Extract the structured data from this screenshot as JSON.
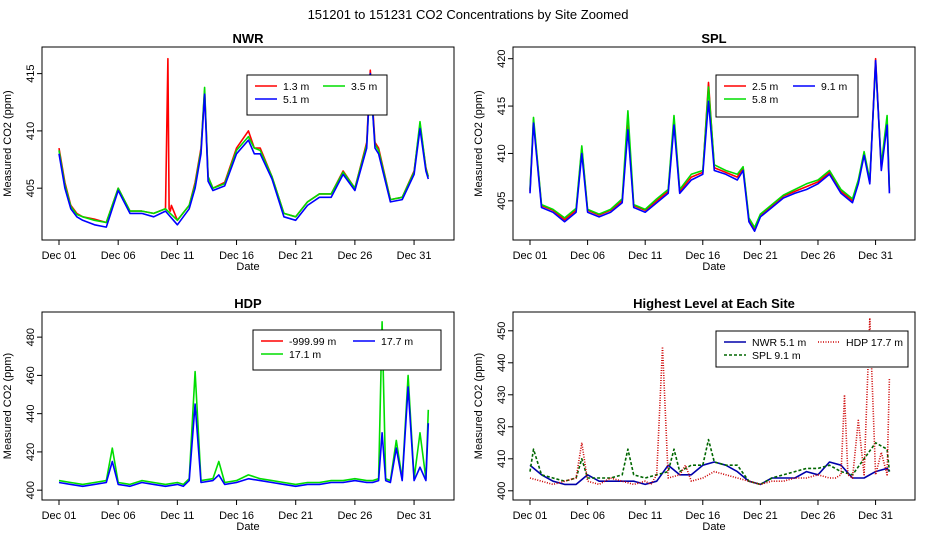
{
  "main_title": "151201  to  151231 CO2 Concentrations by Site Zoomed",
  "chart_data": [
    {
      "type": "line",
      "title": "NWR",
      "xlabel": "Date",
      "ylabel": "Measured CO2 (ppm)",
      "x_ticks": [
        "Dec 01",
        "Dec 06",
        "Dec 11",
        "Dec 16",
        "Dec 21",
        "Dec 26",
        "Dec 31"
      ],
      "y_ticks": [
        "405",
        "410",
        "415"
      ],
      "xlim": [
        0,
        31.6
      ],
      "ylim": [
        401.0,
        416.8
      ],
      "grid": false,
      "legend_position": "top-right",
      "series": [
        {
          "name": "1.3 m",
          "color": "#ff0000",
          "x": [
            0,
            0.5,
            1,
            1.5,
            2,
            3,
            4,
            5,
            6,
            7,
            8,
            9,
            9.2,
            9.3,
            9.4,
            9.5,
            10,
            11,
            11.5,
            12,
            12.3,
            12.6,
            13,
            14,
            15,
            16,
            16.5,
            17,
            18,
            19,
            20,
            21,
            22,
            23,
            24,
            25,
            26,
            26.3,
            26.7,
            27,
            28,
            29,
            30,
            30.5,
            31,
            31.2
          ],
          "values": [
            408.5,
            405.5,
            403.5,
            402.8,
            402.5,
            402.3,
            402.0,
            405.0,
            403.0,
            403.0,
            402.8,
            403.2,
            416.3,
            403.2,
            403.0,
            403.5,
            402.2,
            403.5,
            405.5,
            408.5,
            413.5,
            406.0,
            405.0,
            405.5,
            408.5,
            410.0,
            408.5,
            408.5,
            406.0,
            402.8,
            402.5,
            403.8,
            404.5,
            404.5,
            406.5,
            405.0,
            409.0,
            415.3,
            409.0,
            408.5,
            404.0,
            404.2,
            406.5,
            410.5,
            406.8,
            406.0
          ]
        },
        {
          "name": "3.5 m",
          "color": "#00dd00",
          "x": [
            0,
            0.5,
            1,
            1.5,
            2,
            3,
            4,
            5,
            6,
            7,
            8,
            9,
            10,
            11,
            11.5,
            12,
            12.3,
            12.6,
            13,
            14,
            15,
            16,
            16.5,
            17,
            18,
            19,
            20,
            21,
            22,
            23,
            24,
            25,
            26,
            26.3,
            26.7,
            27,
            28,
            29,
            30,
            30.5,
            31,
            31.2
          ],
          "values": [
            408.3,
            405.3,
            403.4,
            402.7,
            402.5,
            402.2,
            402.0,
            405.0,
            403.0,
            403.0,
            402.8,
            403.2,
            402.2,
            403.5,
            405.3,
            408.3,
            413.8,
            406.0,
            405.0,
            405.4,
            408.3,
            409.5,
            408.5,
            408.3,
            406.0,
            402.8,
            402.5,
            403.8,
            404.5,
            404.5,
            406.4,
            405.0,
            408.8,
            414.5,
            408.8,
            408.3,
            404.0,
            404.2,
            406.4,
            410.8,
            406.7,
            406.0
          ]
        },
        {
          "name": "5.1 m",
          "color": "#0000ff",
          "x": [
            0,
            0.5,
            1,
            1.5,
            2,
            3,
            4,
            5,
            6,
            7,
            8,
            9,
            10,
            11,
            11.5,
            12,
            12.3,
            12.6,
            13,
            14,
            15,
            16,
            16.5,
            17,
            18,
            19,
            20,
            21,
            22,
            23,
            24,
            25,
            26,
            26.3,
            26.7,
            27,
            28,
            29,
            30,
            30.5,
            31,
            31.2
          ],
          "values": [
            408.0,
            405.0,
            403.2,
            402.5,
            402.2,
            401.8,
            401.6,
            404.8,
            402.8,
            402.8,
            402.5,
            403.0,
            401.8,
            403.2,
            405.0,
            408.0,
            413.2,
            405.6,
            404.8,
            405.2,
            408.0,
            409.2,
            408.0,
            408.0,
            405.8,
            402.5,
            402.2,
            403.5,
            404.2,
            404.2,
            406.2,
            404.8,
            408.5,
            415.0,
            408.5,
            408.0,
            403.8,
            404.0,
            406.2,
            410.2,
            406.5,
            405.8
          ]
        }
      ]
    },
    {
      "type": "line",
      "title": "SPL",
      "xlabel": "Date",
      "ylabel": "Measured CO2 (ppm)",
      "x_ticks": [
        "Dec 01",
        "Dec 06",
        "Dec 11",
        "Dec 16",
        "Dec 21",
        "Dec 26",
        "Dec 31"
      ],
      "y_ticks": [
        "405",
        "410",
        "415",
        "420"
      ],
      "xlim": [
        0,
        31.6
      ],
      "ylim": [
        401.5,
        420.6
      ],
      "grid": false,
      "legend_position": "top-right",
      "series": [
        {
          "name": "2.5 m",
          "color": "#ff0000",
          "x": [
            0,
            0.3,
            1,
            2,
            3,
            4,
            4.5,
            5,
            6,
            7,
            8,
            8.5,
            9,
            10,
            11,
            12,
            12.5,
            13,
            14,
            15,
            15.5,
            16,
            17,
            18,
            18.5,
            19,
            19.5,
            20,
            21,
            22,
            23,
            24,
            25,
            26,
            27,
            28,
            28.5,
            29,
            29.5,
            30,
            30.5,
            31,
            31.2
          ],
          "values": [
            406.0,
            413.5,
            404.5,
            404.0,
            403.0,
            404.0,
            410.5,
            404.0,
            403.5,
            404.0,
            405.0,
            413.0,
            404.5,
            404.0,
            405.0,
            406.0,
            413.5,
            406.0,
            407.5,
            408.0,
            417.5,
            408.5,
            408.0,
            407.5,
            408.5,
            403.0,
            402.0,
            403.5,
            404.5,
            405.5,
            406.0,
            406.5,
            407.0,
            408.0,
            406.0,
            405.0,
            407.0,
            410.0,
            407.0,
            420.0,
            408.5,
            413.5,
            406.0
          ]
        },
        {
          "name": "5.8 m",
          "color": "#00dd00",
          "x": [
            0,
            0.3,
            1,
            2,
            3,
            4,
            4.5,
            5,
            6,
            7,
            8,
            8.5,
            9,
            10,
            11,
            12,
            12.5,
            13,
            14,
            15,
            15.5,
            16,
            17,
            18,
            18.5,
            19,
            19.5,
            20,
            21,
            22,
            23,
            24,
            25,
            26,
            27,
            28,
            28.5,
            29,
            29.5,
            30,
            30.5,
            31,
            31.2
          ],
          "values": [
            406.2,
            413.8,
            404.6,
            404.1,
            403.2,
            404.2,
            410.8,
            404.1,
            403.6,
            404.1,
            405.2,
            414.5,
            404.6,
            404.1,
            405.2,
            406.2,
            414.0,
            406.2,
            407.8,
            408.2,
            417.0,
            408.8,
            408.2,
            407.8,
            408.6,
            403.2,
            402.2,
            403.6,
            404.6,
            405.6,
            406.2,
            406.8,
            407.2,
            408.2,
            406.2,
            405.2,
            407.2,
            410.2,
            407.2,
            419.5,
            408.8,
            414.0,
            406.2
          ]
        },
        {
          "name": "9.1 m",
          "color": "#0000ff",
          "x": [
            0,
            0.3,
            1,
            2,
            3,
            4,
            4.5,
            5,
            6,
            7,
            8,
            8.5,
            9,
            10,
            11,
            12,
            12.5,
            13,
            14,
            15,
            15.5,
            16,
            17,
            18,
            18.5,
            19,
            19.5,
            20,
            21,
            22,
            23,
            24,
            25,
            26,
            27,
            28,
            28.5,
            29,
            29.5,
            30,
            30.5,
            31,
            31.2
          ],
          "values": [
            405.8,
            413.2,
            404.3,
            403.8,
            402.8,
            403.8,
            410.0,
            403.8,
            403.3,
            403.8,
            404.8,
            412.5,
            404.3,
            403.8,
            404.8,
            405.8,
            413.0,
            405.8,
            407.2,
            407.8,
            415.5,
            408.2,
            407.8,
            407.2,
            408.2,
            402.8,
            401.8,
            403.3,
            404.3,
            405.3,
            405.8,
            406.2,
            406.8,
            407.8,
            405.8,
            404.8,
            406.8,
            409.8,
            406.8,
            419.8,
            408.2,
            413.0,
            405.8
          ]
        }
      ]
    },
    {
      "type": "line",
      "title": "HDP",
      "xlabel": "Date",
      "ylabel": "Measured CO2 (ppm)",
      "x_ticks": [
        "Dec 01",
        "Dec 06",
        "Dec 11",
        "Dec 16",
        "Dec 21",
        "Dec 26",
        "Dec 31"
      ],
      "y_ticks": [
        "400",
        "420",
        "440",
        "460",
        "480"
      ],
      "xlim": [
        0,
        31.6
      ],
      "ylim": [
        398,
        490
      ],
      "grid": false,
      "legend_position": "top-right",
      "series": [
        {
          "name": "-999.99 m",
          "color": "#ff0000",
          "x": [],
          "values": []
        },
        {
          "name": "17.1 m",
          "color": "#00dd00",
          "x": [
            0,
            1,
            2,
            3,
            4,
            4.5,
            5,
            6,
            7,
            8,
            9,
            10,
            10.5,
            11,
            11.5,
            12,
            13,
            13.5,
            14,
            15,
            16,
            17,
            18,
            19,
            20,
            21,
            22,
            23,
            24,
            25,
            26,
            26.5,
            27,
            27.3,
            27.6,
            28,
            28.5,
            29,
            29.5,
            30,
            30.5,
            31,
            31.2
          ],
          "values": [
            405,
            404,
            403,
            404,
            405,
            422,
            404,
            403,
            405,
            404,
            403,
            404,
            403,
            406,
            462,
            405,
            406,
            415,
            404,
            405,
            408,
            406,
            405,
            404,
            403,
            404,
            404,
            405,
            405,
            406,
            405,
            405,
            406,
            488,
            406,
            405,
            426,
            406,
            460,
            406,
            430,
            406,
            442
          ]
        },
        {
          "name": "17.7 m",
          "color": "#0000ff",
          "x": [
            0,
            1,
            2,
            3,
            4,
            4.5,
            5,
            6,
            7,
            8,
            9,
            10,
            10.5,
            11,
            11.5,
            12,
            13,
            13.5,
            14,
            15,
            16,
            17,
            18,
            19,
            20,
            21,
            22,
            23,
            24,
            25,
            26,
            26.5,
            27,
            27.3,
            27.6,
            28,
            28.5,
            29,
            29.5,
            30,
            30.5,
            31,
            31.2
          ],
          "values": [
            404,
            403,
            402,
            403,
            404,
            415,
            403,
            402,
            404,
            403,
            402,
            403,
            402,
            405,
            445,
            404,
            405,
            408,
            403,
            404,
            406,
            405,
            404,
            403,
            402,
            403,
            403,
            404,
            404,
            405,
            404,
            404,
            405,
            430,
            405,
            404,
            422,
            405,
            454,
            405,
            412,
            405,
            435
          ]
        }
      ]
    },
    {
      "type": "line",
      "title": "Highest Level at Each Site",
      "xlabel": "Date",
      "ylabel": "Measured CO2 (ppm)",
      "x_ticks": [
        "Dec 01",
        "Dec 06",
        "Dec 11",
        "Dec 16",
        "Dec 21",
        "Dec 26",
        "Dec 31"
      ],
      "y_ticks": [
        "400",
        "410",
        "420",
        "430",
        "440",
        "450"
      ],
      "xlim": [
        0,
        31.6
      ],
      "ylim": [
        399,
        454
      ],
      "grid": false,
      "legend_position": "top-right",
      "series": [
        {
          "name": "NWR  5.1 m",
          "color": "#0000aa",
          "linestyle": "solid",
          "x": [
            0,
            1,
            2,
            3,
            4,
            5,
            6,
            7,
            8,
            9,
            10,
            11,
            12,
            13,
            14,
            15,
            16,
            17,
            18,
            19,
            20,
            21,
            22,
            23,
            24,
            25,
            26,
            27,
            28,
            29,
            30,
            31,
            31.2
          ],
          "values": [
            408,
            405,
            403,
            402,
            402,
            405,
            403,
            403,
            403,
            403,
            402,
            403,
            408,
            405,
            405,
            408,
            409,
            408,
            406,
            403,
            402,
            404,
            404,
            404,
            406,
            405,
            409,
            408,
            404,
            404,
            406,
            407,
            406
          ]
        },
        {
          "name": "SPL  9.1 m",
          "color": "#006600",
          "linestyle": "dashed",
          "x": [
            0,
            0.3,
            1,
            2,
            3,
            4,
            4.5,
            5,
            6,
            7,
            8,
            8.5,
            9,
            10,
            11,
            12,
            12.5,
            13,
            14,
            15,
            15.5,
            16,
            17,
            18,
            19,
            20,
            21,
            22,
            23,
            24,
            25,
            26,
            27,
            28,
            29,
            30,
            31,
            31.2
          ],
          "values": [
            406,
            413,
            405,
            404,
            403,
            404,
            410,
            404,
            404,
            404,
            405,
            413,
            405,
            404,
            405,
            406,
            413,
            406,
            408,
            408,
            416,
            409,
            408,
            408,
            403,
            402,
            404,
            405,
            406,
            407,
            407,
            408,
            406,
            405,
            410,
            415,
            413,
            406
          ]
        },
        {
          "name": "HDP  17.7 m",
          "color": "#cc0000",
          "linestyle": "dotted",
          "x": [
            0,
            1,
            2,
            3,
            4,
            4.5,
            5,
            6,
            7,
            8,
            9,
            10,
            10.5,
            11,
            11.5,
            12,
            13,
            13.5,
            14,
            15,
            16,
            17,
            18,
            19,
            20,
            21,
            22,
            23,
            24,
            25,
            26,
            26.5,
            27,
            27.3,
            27.6,
            28,
            28.5,
            29,
            29.5,
            30,
            30.5,
            31,
            31.2
          ],
          "values": [
            404,
            403,
            402,
            403,
            404,
            415,
            403,
            402,
            404,
            403,
            402,
            403,
            402,
            405,
            445,
            404,
            405,
            408,
            403,
            404,
            406,
            405,
            404,
            403,
            402,
            403,
            403,
            404,
            404,
            405,
            404,
            404,
            405,
            430,
            405,
            404,
            422,
            405,
            454,
            405,
            412,
            405,
            435
          ]
        }
      ]
    }
  ]
}
